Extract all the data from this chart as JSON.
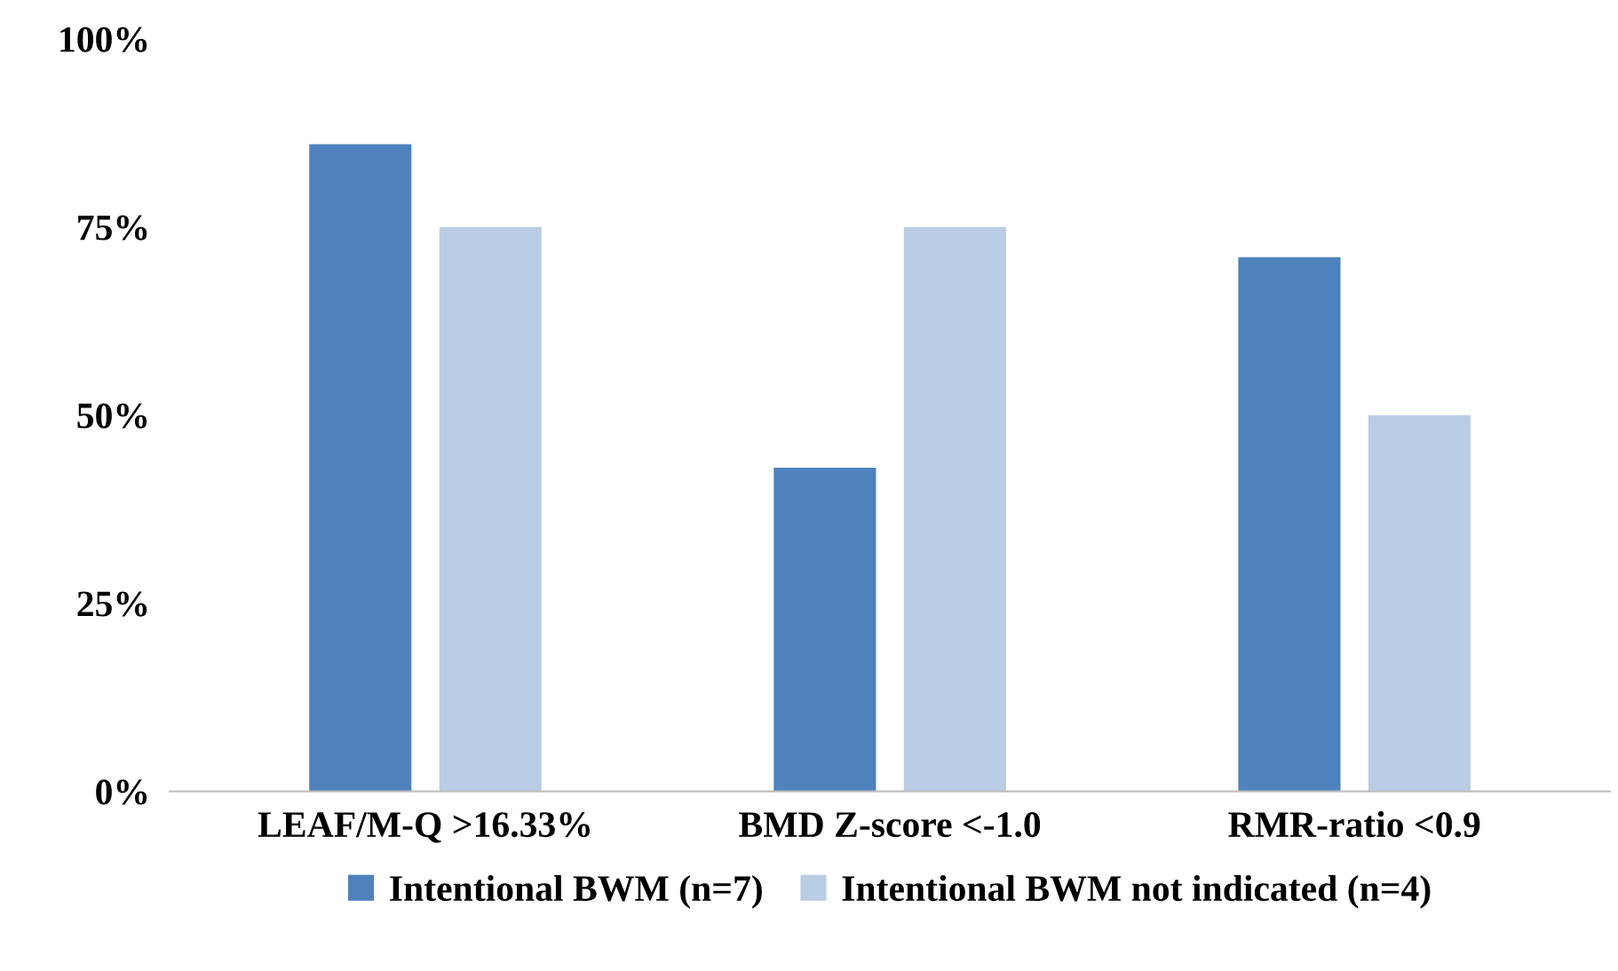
{
  "chart_data": {
    "type": "bar",
    "categories": [
      "LEAF/M-Q >16.33%",
      "BMD Z-score <-1.0",
      "RMR-ratio <0.9"
    ],
    "series": [
      {
        "name": "Intentional BWM (n=7)",
        "color": "#4f81bd",
        "values": [
          86,
          43,
          71
        ]
      },
      {
        "name": "Intentional BWM not indicated (n=4)",
        "color": "#b9cde5",
        "values": [
          75,
          75,
          50
        ]
      }
    ],
    "ylim": [
      0,
      100
    ],
    "yticks": [
      {
        "value": 0,
        "label": "0%"
      },
      {
        "value": 25,
        "label": "25%"
      },
      {
        "value": 50,
        "label": "50%"
      },
      {
        "value": 75,
        "label": "75%"
      },
      {
        "value": 100,
        "label": "100%"
      }
    ],
    "grid": false,
    "legend": "bottom"
  }
}
